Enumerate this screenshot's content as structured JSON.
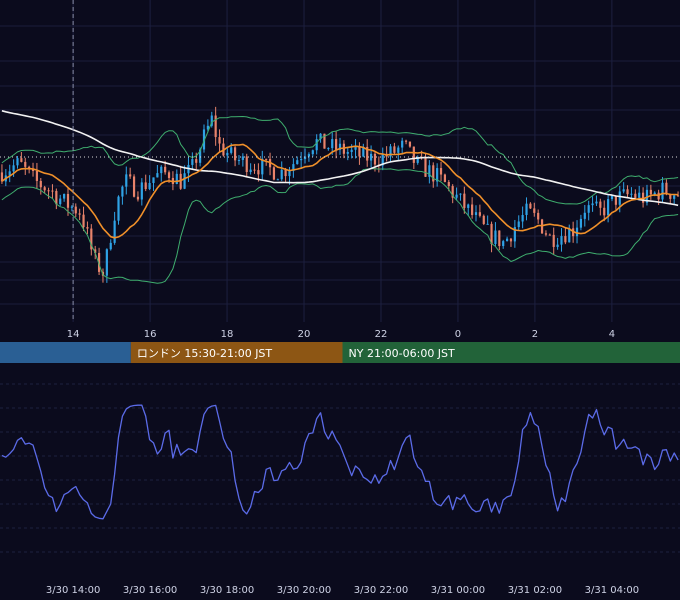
{
  "chart_data": [
    {
      "type": "candlestick",
      "panel": "price",
      "x_hours": {
        "start": 12.1,
        "end": 29.77
      },
      "x_ticks": [
        {
          "hour": 14,
          "label": "14"
        },
        {
          "hour": 16,
          "label": "16"
        },
        {
          "hour": 18,
          "label": "18"
        },
        {
          "hour": 20,
          "label": "20"
        },
        {
          "hour": 22,
          "label": "22"
        },
        {
          "hour": 24,
          "label": "0"
        },
        {
          "hour": 26,
          "label": "2"
        },
        {
          "hour": 28,
          "label": "4"
        }
      ],
      "current_price_line": true,
      "crosshair_hour": 14,
      "grid": true,
      "colors": {
        "up": "#2fa3e6",
        "down": "#e8836b",
        "sma": "#f2f2f2",
        "ema": "#f0902a",
        "bands": "#3fae6e",
        "price_line": "#d9d9d9"
      },
      "series": [
        {
          "kind": "moving-average-long",
          "color": "#f2f2f2"
        },
        {
          "kind": "moving-average-short",
          "color": "#f0902a"
        },
        {
          "kind": "bollinger-upper",
          "color": "#3fae6e"
        },
        {
          "kind": "bollinger-lower",
          "color": "#3fae6e"
        }
      ]
    },
    {
      "type": "line",
      "panel": "oscillator",
      "color": "#5b6be8",
      "grid": true
    }
  ],
  "sessions": [
    {
      "label": "",
      "color": "#2a5f94",
      "start_hour": 12.1,
      "end_hour": 15.5
    },
    {
      "label": "ロンドン 15:30-21:00 JST",
      "color": "#8d5614",
      "start_hour": 15.5,
      "end_hour": 21.0
    },
    {
      "label": "NY 21:00-06:00 JST",
      "color": "#226339",
      "start_hour": 21.0,
      "end_hour": 29.77
    }
  ],
  "bottom_axis": {
    "ticks": [
      {
        "hour": 14,
        "label": "3/30 14:00"
      },
      {
        "hour": 16,
        "label": "3/30 16:00"
      },
      {
        "hour": 18,
        "label": "3/30 18:00"
      },
      {
        "hour": 20,
        "label": "3/30 20:00"
      },
      {
        "hour": 22,
        "label": "3/30 22:00"
      },
      {
        "hour": 24,
        "label": "3/31 00:00"
      },
      {
        "hour": 26,
        "label": "3/31 02:00"
      },
      {
        "hour": 28,
        "label": "3/31 04:00"
      }
    ]
  }
}
